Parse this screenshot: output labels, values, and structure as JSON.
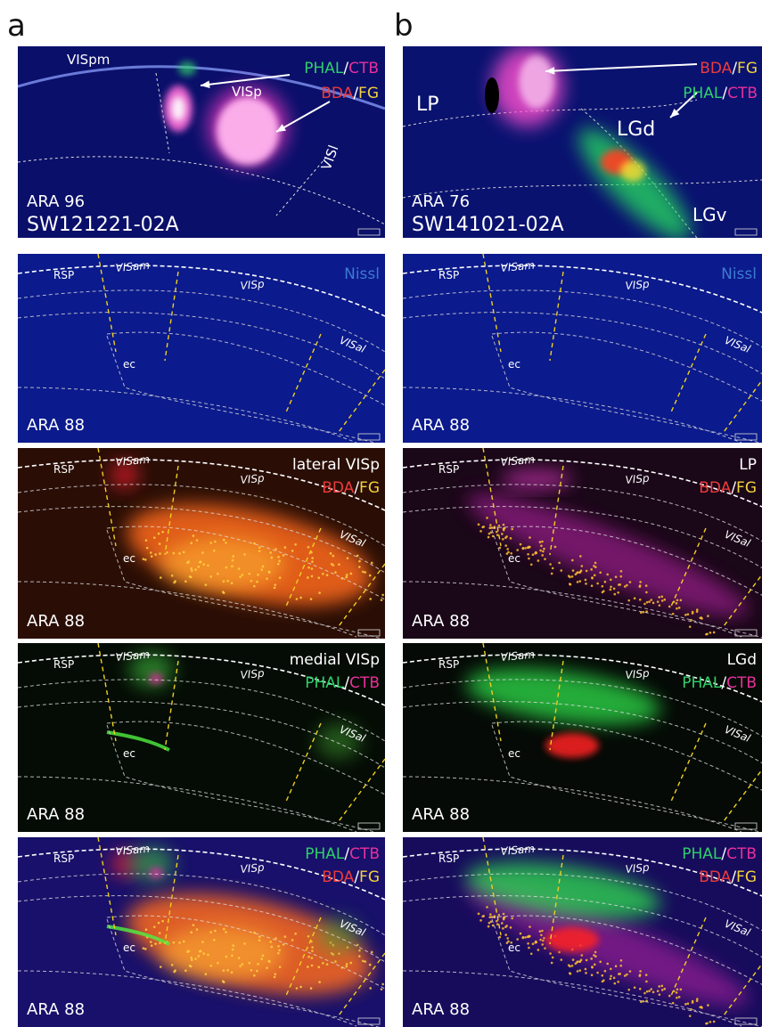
{
  "column_labels": [
    "a",
    "b"
  ],
  "slash": "/",
  "tracers": {
    "phal": "PHAL",
    "ctb": "CTB",
    "bda": "BDA",
    "fg": "FG"
  },
  "injection_panels": [
    {
      "regions": [
        "VISpm",
        "VISp",
        "VISl"
      ],
      "atlas": "ARA 96",
      "case": "SW121221-02A"
    },
    {
      "regions": [
        "LP",
        "LGd",
        "LGv"
      ],
      "atlas": "ARA 76",
      "case": "SW141021-02A"
    }
  ],
  "section_labels": {
    "regions": [
      "RSP",
      "VISam",
      "VISp",
      "VISal",
      "ec"
    ],
    "atlas": "ARA 88"
  },
  "stain": "Nissl",
  "panel_titles": [
    "lateral VISp",
    "LP",
    "medial VISp",
    "LGd"
  ]
}
